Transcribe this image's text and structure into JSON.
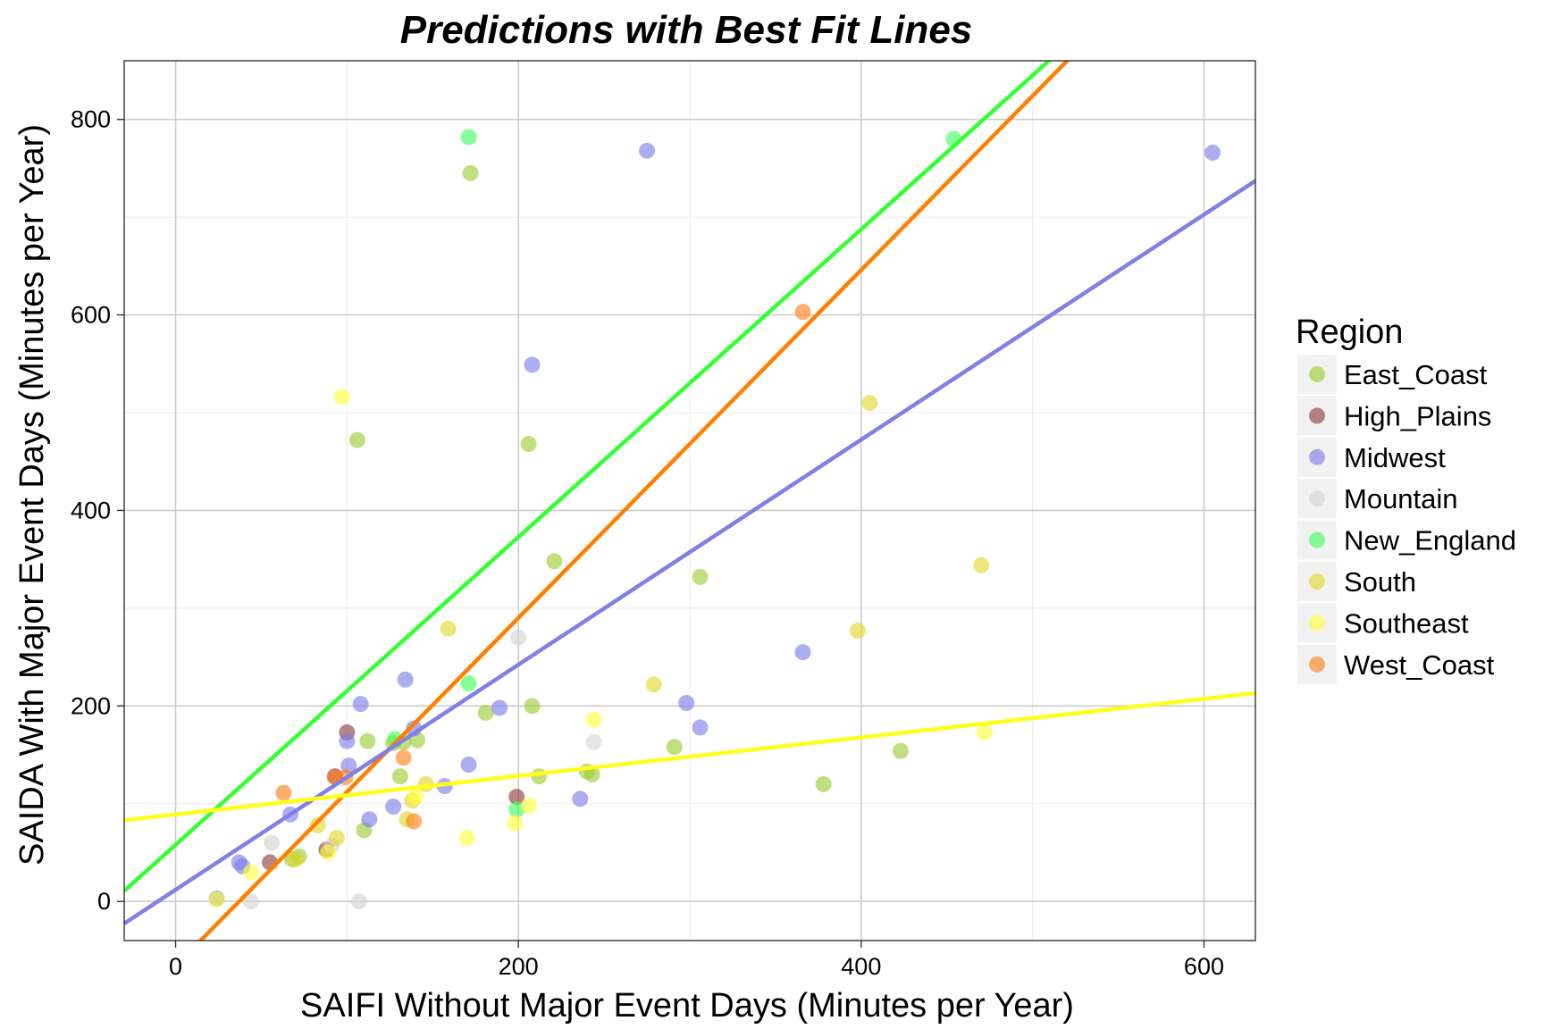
{
  "chart_data": {
    "type": "scatter",
    "title": "Predictions with Best Fit Lines",
    "xlabel": "SAIFI Without Major Event Days (Minutes per Year)",
    "ylabel": "SAIDA With Major Event Days (Minutes per Year)",
    "xlim": [
      -30,
      630
    ],
    "ylim": [
      -40,
      860
    ],
    "x_ticks": [
      0,
      200,
      400,
      600
    ],
    "y_ticks": [
      0,
      200,
      400,
      600,
      800
    ],
    "grid": true,
    "legend": {
      "title": "Region",
      "position": "right"
    },
    "series": [
      {
        "name": "East_Coast",
        "color": "#9acd32",
        "points": [
          [
            172,
            745
          ],
          [
            106,
            472
          ],
          [
            206,
            468
          ],
          [
            221,
            348
          ],
          [
            306,
            332
          ],
          [
            181,
            193
          ],
          [
            208,
            200
          ],
          [
            112,
            164
          ],
          [
            127,
            162
          ],
          [
            133,
            163
          ],
          [
            131,
            128
          ],
          [
            141,
            165
          ],
          [
            291,
            158
          ],
          [
            212,
            128
          ],
          [
            243,
            130
          ],
          [
            240,
            133
          ],
          [
            423,
            154
          ],
          [
            378,
            120
          ],
          [
            110,
            73
          ],
          [
            68,
            43
          ],
          [
            72,
            46
          ]
        ]
      },
      {
        "name": "High_Plains",
        "color": "#8b3a3a",
        "points": [
          [
            100,
            173
          ],
          [
            199,
            107
          ],
          [
            55,
            40
          ],
          [
            88,
            53
          ],
          [
            93,
            128
          ]
        ]
      },
      {
        "name": "Midwest",
        "color": "#7b7bea",
        "points": [
          [
            275,
            768
          ],
          [
            605,
            766
          ],
          [
            208,
            549
          ],
          [
            134,
            227
          ],
          [
            108,
            202
          ],
          [
            100,
            164
          ],
          [
            139,
            177
          ],
          [
            101,
            139
          ],
          [
            171,
            140
          ],
          [
            189,
            198
          ],
          [
            298,
            203
          ],
          [
            306,
            178
          ],
          [
            366,
            255
          ],
          [
            236,
            105
          ],
          [
            157,
            118
          ],
          [
            113,
            84
          ],
          [
            127,
            97
          ],
          [
            67,
            89
          ],
          [
            37,
            40
          ],
          [
            39,
            36
          ],
          [
            24,
            3
          ]
        ]
      },
      {
        "name": "Mountain",
        "color": "#d3d3d3",
        "points": [
          [
            200,
            270
          ],
          [
            244,
            163
          ],
          [
            56,
            60
          ],
          [
            91,
            57
          ],
          [
            44,
            0
          ],
          [
            107,
            0
          ]
        ]
      },
      {
        "name": "New_England",
        "color": "#3dff5a",
        "points": [
          [
            171,
            782
          ],
          [
            454,
            780
          ],
          [
            171,
            223
          ],
          [
            128,
            166
          ],
          [
            199,
            94
          ]
        ]
      },
      {
        "name": "South",
        "color": "#e0d72a",
        "points": [
          [
            405,
            510
          ],
          [
            470,
            344
          ],
          [
            398,
            277
          ],
          [
            159,
            279
          ],
          [
            279,
            222
          ],
          [
            146,
            120
          ],
          [
            138,
            103
          ],
          [
            135,
            84
          ],
          [
            83,
            78
          ],
          [
            94,
            65
          ],
          [
            70,
            43
          ]
        ]
      },
      {
        "name": "Southeast",
        "color": "#ffff33",
        "points": [
          [
            97,
            516
          ],
          [
            244,
            186
          ],
          [
            472,
            173
          ],
          [
            140,
            107
          ],
          [
            170,
            65
          ],
          [
            206,
            98
          ],
          [
            198,
            80
          ],
          [
            89,
            50
          ],
          [
            44,
            30
          ],
          [
            24,
            2
          ]
        ]
      },
      {
        "name": "West_Coast",
        "color": "#ff7f1a",
        "points": [
          [
            366,
            603
          ],
          [
            63,
            111
          ],
          [
            93,
            127
          ],
          [
            99,
            127
          ],
          [
            133,
            147
          ],
          [
            139,
            82
          ]
        ]
      }
    ],
    "fit_lines": [
      {
        "name": "New_England",
        "color": "#33ff33",
        "slope": 1.574,
        "intercept": 58
      },
      {
        "name": "West_Coast",
        "color": "#ff8000",
        "slope": 1.78,
        "intercept": -66
      },
      {
        "name": "Midwest",
        "color": "#8080e6",
        "slope": 1.151,
        "intercept": 12
      },
      {
        "name": "Southeast",
        "color": "#ffff1a",
        "slope": 0.197,
        "intercept": 89
      }
    ]
  }
}
